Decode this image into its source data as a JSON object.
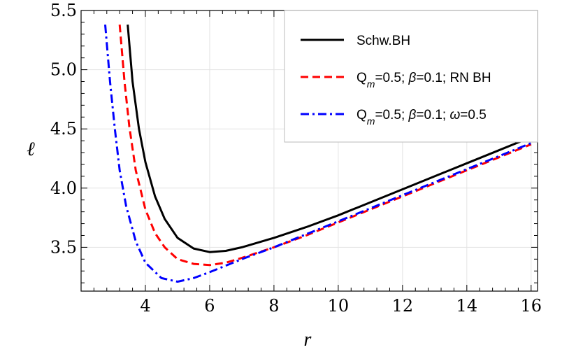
{
  "chart_data": {
    "type": "line",
    "xlabel": "r",
    "ylabel": "ℓ",
    "xlim": [
      2.0,
      16.2
    ],
    "ylim": [
      3.13,
      5.5
    ],
    "xticks": [
      4,
      6,
      8,
      10,
      12,
      14,
      16
    ],
    "xtick_labels": [
      "4",
      "6",
      "8",
      "10",
      "12",
      "14",
      "16"
    ],
    "yticks": [
      3.5,
      4.0,
      4.5,
      5.0,
      5.5
    ],
    "ytick_labels": [
      "3.5",
      "4.0",
      "4.5",
      "5.0",
      "5.5"
    ],
    "grid": true,
    "legend_position": "top-right",
    "series": [
      {
        "name": "Schw.BH",
        "legend": [
          {
            "t": "Schw.BH"
          }
        ],
        "color": "#000000",
        "dash": "solid",
        "x": [
          3.45,
          3.6,
          3.8,
          4.0,
          4.3,
          4.6,
          5.0,
          5.5,
          6.0,
          6.5,
          7.0,
          8.0,
          9.0,
          10.0,
          11.0,
          12.0,
          13.0,
          14.0,
          15.0,
          16.0
        ],
        "y": [
          5.38,
          4.9,
          4.5,
          4.22,
          3.93,
          3.74,
          3.58,
          3.49,
          3.46,
          3.47,
          3.5,
          3.58,
          3.67,
          3.77,
          3.88,
          3.99,
          4.1,
          4.21,
          4.32,
          4.43
        ]
      },
      {
        "name": "Q_m=0.5; β=0.1; RN BH",
        "legend": [
          {
            "t": "Q"
          },
          {
            "t": "m",
            "sub": true
          },
          {
            "t": "=0.5; "
          },
          {
            "t": "β",
            "it": true
          },
          {
            "t": "=0.1; RN BH"
          }
        ],
        "color": "#ff0000",
        "dash": "dashed",
        "x": [
          3.2,
          3.35,
          3.5,
          3.7,
          4.0,
          4.3,
          4.6,
          5.0,
          5.5,
          6.0,
          6.5,
          7.0,
          8.0,
          9.0,
          10.0,
          11.0,
          12.0,
          13.0,
          14.0,
          15.0,
          16.0
        ],
        "y": [
          5.38,
          4.9,
          4.52,
          4.15,
          3.82,
          3.62,
          3.5,
          3.4,
          3.36,
          3.35,
          3.37,
          3.41,
          3.5,
          3.6,
          3.71,
          3.82,
          3.93,
          4.04,
          4.15,
          4.26,
          4.37
        ]
      },
      {
        "name": "Q_m=0.5; β=0.1; ω=0.5",
        "legend": [
          {
            "t": "Q"
          },
          {
            "t": "m",
            "sub": true
          },
          {
            "t": "=0.5; "
          },
          {
            "t": "β",
            "it": true
          },
          {
            "t": "=0.1; "
          },
          {
            "t": "ω",
            "it": true
          },
          {
            "t": "=0.5"
          }
        ],
        "color": "#0000ff",
        "dash": "dashdot",
        "x": [
          2.75,
          2.9,
          3.05,
          3.2,
          3.4,
          3.7,
          4.0,
          4.5,
          5.0,
          5.5,
          6.0,
          7.0,
          8.0,
          9.0,
          10.0,
          11.0,
          12.0,
          13.0,
          14.0,
          15.0,
          16.0
        ],
        "y": [
          5.38,
          4.9,
          4.5,
          4.15,
          3.85,
          3.55,
          3.37,
          3.24,
          3.21,
          3.24,
          3.29,
          3.4,
          3.5,
          3.61,
          3.72,
          3.83,
          3.94,
          4.05,
          4.16,
          4.27,
          4.38
        ]
      }
    ]
  }
}
